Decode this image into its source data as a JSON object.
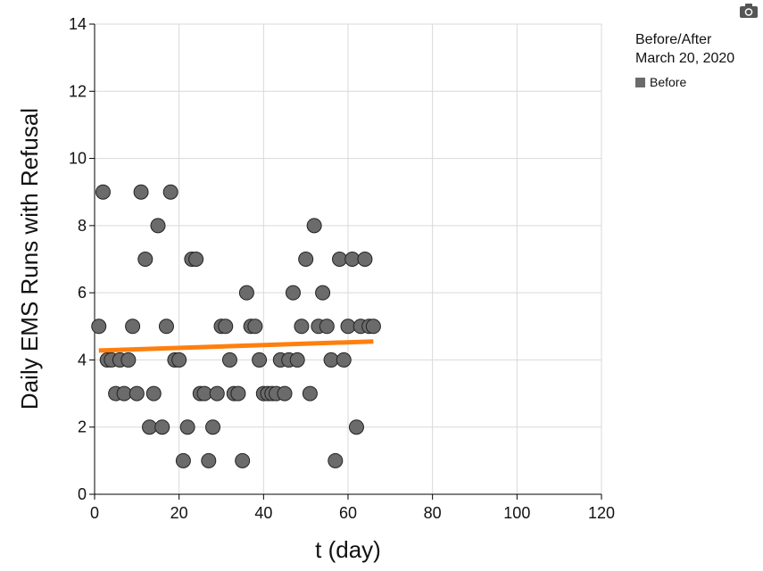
{
  "legend": {
    "title_line1": "Before/After",
    "title_line2": "March 20, 2020",
    "item_label": "Before",
    "item_color": "#6b6b6b"
  },
  "toolbar": {
    "camera_icon": "camera-icon"
  },
  "chart_data": {
    "type": "scatter",
    "xlabel": "t (day)",
    "ylabel": "Daily EMS Runs with Refusal",
    "xlim": [
      0,
      120
    ],
    "ylim": [
      0,
      14
    ],
    "xticks": [
      0,
      20,
      40,
      60,
      80,
      100,
      120
    ],
    "yticks": [
      0,
      2,
      4,
      6,
      8,
      10,
      12,
      14
    ],
    "grid": true,
    "legend_position": "top-right",
    "series": [
      {
        "name": "Before",
        "color": "#6b6b6b",
        "x": [
          1,
          2,
          3,
          4,
          5,
          6,
          7,
          8,
          9,
          10,
          11,
          12,
          13,
          14,
          15,
          16,
          17,
          18,
          19,
          20,
          21,
          22,
          23,
          24,
          25,
          26,
          27,
          28,
          29,
          30,
          31,
          32,
          33,
          34,
          35,
          36,
          37,
          38,
          39,
          40,
          41,
          42,
          43,
          44,
          45,
          46,
          47,
          48,
          49,
          50,
          51,
          52,
          53,
          54,
          55,
          56,
          57,
          58,
          59,
          60,
          61,
          62,
          63,
          64,
          65,
          66
        ],
        "y": [
          5,
          9,
          4,
          4,
          3,
          4,
          3,
          4,
          5,
          3,
          9,
          7,
          2,
          3,
          8,
          2,
          5,
          9,
          4,
          4,
          1,
          2,
          7,
          7,
          3,
          3,
          1,
          2,
          3,
          5,
          5,
          4,
          3,
          3,
          1,
          6,
          5,
          5,
          4,
          3,
          3,
          3,
          3,
          4,
          3,
          4,
          6,
          4,
          5,
          7,
          3,
          8,
          5,
          6,
          5,
          4,
          1,
          7,
          4,
          5,
          7,
          2,
          5,
          7,
          5,
          5
        ]
      },
      {
        "name": "trend",
        "type": "line",
        "color": "#ff7f0e",
        "x": [
          1,
          66
        ],
        "y": [
          4.28,
          4.55
        ]
      }
    ]
  }
}
